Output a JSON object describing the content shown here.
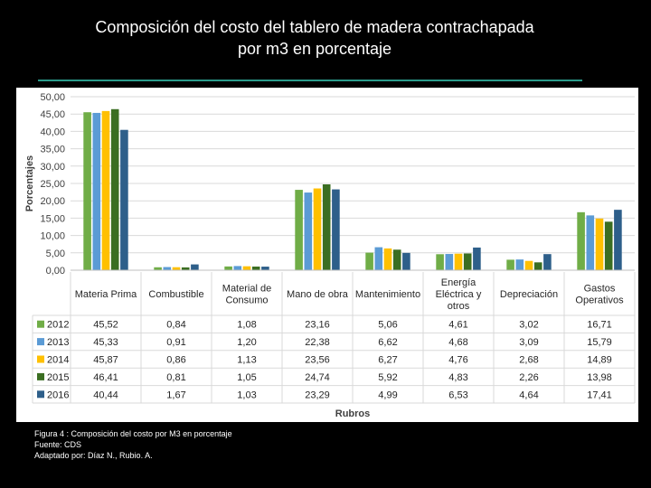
{
  "slide": {
    "title_line1": "Composición del costo del tablero de madera contrachapada",
    "title_line2": "por m3 en porcentaje"
  },
  "caption": {
    "line1": "Figura 4 : Composición del costo por M3 en porcentaje",
    "line2": "Fuente: CDS",
    "line3": "Adaptado por: Díaz N., Rubio. A."
  },
  "colors": {
    "2012": "#70ad47",
    "2013": "#5b9bd5",
    "2014": "#ffc000",
    "2015": "#3b6e22",
    "2016": "#2e5f8a",
    "rule": "#2a9a8a"
  },
  "chart_data": {
    "type": "bar",
    "title": "",
    "xlabel": "Rubros",
    "ylabel": "Porcentajes",
    "ylim": [
      0,
      50
    ],
    "yticks": [
      "0,00",
      "5,00",
      "10,00",
      "15,00",
      "20,00",
      "25,00",
      "30,00",
      "35,00",
      "40,00",
      "45,00",
      "50,00"
    ],
    "categories": [
      [
        "Materia Prima"
      ],
      [
        "Combustible"
      ],
      [
        "Material de",
        "Consumo"
      ],
      [
        "Mano de obra"
      ],
      [
        "Mantenimiento"
      ],
      [
        "Energía",
        "Eléctrica y",
        "otros"
      ],
      [
        "Depreciación"
      ],
      [
        "Gastos",
        "Operativos"
      ]
    ],
    "series": [
      {
        "name": "2012",
        "values": [
          45.52,
          0.84,
          1.08,
          23.16,
          5.06,
          4.61,
          3.02,
          16.71
        ],
        "labels": [
          "45,52",
          "0,84",
          "1,08",
          "23,16",
          "5,06",
          "4,61",
          "3,02",
          "16,71"
        ]
      },
      {
        "name": "2013",
        "values": [
          45.33,
          0.91,
          1.2,
          22.38,
          6.62,
          4.68,
          3.09,
          15.79
        ],
        "labels": [
          "45,33",
          "0,91",
          "1,20",
          "22,38",
          "6,62",
          "4,68",
          "3,09",
          "15,79"
        ]
      },
      {
        "name": "2014",
        "values": [
          45.87,
          0.86,
          1.13,
          23.56,
          6.27,
          4.76,
          2.68,
          14.89
        ],
        "labels": [
          "45,87",
          "0,86",
          "1,13",
          "23,56",
          "6,27",
          "4,76",
          "2,68",
          "14,89"
        ]
      },
      {
        "name": "2015",
        "values": [
          46.41,
          0.81,
          1.05,
          24.74,
          5.92,
          4.83,
          2.26,
          13.98
        ],
        "labels": [
          "46,41",
          "0,81",
          "1,05",
          "24,74",
          "5,92",
          "4,83",
          "2,26",
          "13,98"
        ]
      },
      {
        "name": "2016",
        "values": [
          40.44,
          1.67,
          1.03,
          23.29,
          4.99,
          6.53,
          4.64,
          17.41
        ],
        "labels": [
          "40,44",
          "1,67",
          "1,03",
          "23,29",
          "4,99",
          "6,53",
          "4,64",
          "17,41"
        ]
      }
    ]
  }
}
